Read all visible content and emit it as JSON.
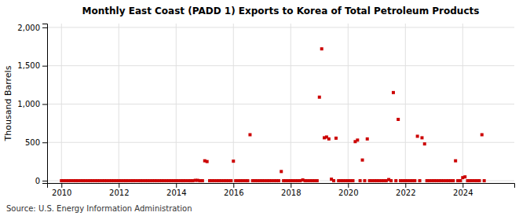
{
  "chart_data": {
    "type": "scatter",
    "title": "Monthly East Coast (PADD 1) Exports to Korea of Total Petroleum Products",
    "ylabel": "Thousand Barrels",
    "annotations": [
      "Source: U.S. Energy Information Administration"
    ],
    "color": "#cc0000",
    "marker": "square",
    "grid": true,
    "xlim": [
      2009.5,
      2025.8
    ],
    "ylim": [
      -30,
      2050
    ],
    "xticks": [
      2010,
      2012,
      2014,
      2016,
      2018,
      2020,
      2022,
      2024
    ],
    "yticks": [
      0,
      500,
      {
        "value": 1000,
        "label": "1,000"
      },
      {
        "value": 1500,
        "label": "1,500"
      },
      {
        "value": 2000,
        "label": "2,000"
      }
    ],
    "x": [
      2010.0,
      2010.08,
      2010.17,
      2010.25,
      2010.33,
      2010.42,
      2010.5,
      2010.58,
      2010.67,
      2010.75,
      2010.83,
      2010.92,
      2011.0,
      2011.08,
      2011.17,
      2011.25,
      2011.33,
      2011.42,
      2011.5,
      2011.58,
      2011.67,
      2011.75,
      2011.83,
      2011.92,
      2012.0,
      2012.08,
      2012.17,
      2012.25,
      2012.33,
      2012.42,
      2012.5,
      2012.58,
      2012.67,
      2012.75,
      2012.83,
      2012.92,
      2013.0,
      2013.08,
      2013.17,
      2013.25,
      2013.33,
      2013.42,
      2013.5,
      2013.58,
      2013.67,
      2013.75,
      2013.83,
      2013.92,
      2014.0,
      2014.08,
      2014.17,
      2014.25,
      2014.33,
      2014.42,
      2014.5,
      2014.58,
      2014.67,
      2014.75,
      2014.83,
      2014.92,
      2015.0,
      2015.08,
      2015.17,
      2015.25,
      2015.33,
      2015.42,
      2015.5,
      2015.58,
      2015.67,
      2015.75,
      2015.83,
      2015.92,
      2016.0,
      2016.08,
      2016.17,
      2016.25,
      2016.33,
      2016.42,
      2016.5,
      2016.58,
      2016.67,
      2016.75,
      2016.83,
      2016.92,
      2017.0,
      2017.08,
      2017.17,
      2017.25,
      2017.33,
      2017.42,
      2017.5,
      2017.58,
      2017.67,
      2017.75,
      2017.83,
      2017.92,
      2018.0,
      2018.08,
      2018.17,
      2018.25,
      2018.33,
      2018.42,
      2018.5,
      2018.58,
      2018.67,
      2018.75,
      2018.83,
      2018.92,
      2019.0,
      2019.08,
      2019.17,
      2019.25,
      2019.33,
      2019.42,
      2019.5,
      2019.58,
      2019.67,
      2019.75,
      2019.83,
      2019.92,
      2020.0,
      2020.08,
      2020.17,
      2020.25,
      2020.33,
      2020.42,
      2020.5,
      2020.58,
      2020.67,
      2020.75,
      2020.83,
      2020.92,
      2021.0,
      2021.08,
      2021.17,
      2021.25,
      2021.33,
      2021.42,
      2021.5,
      2021.58,
      2021.67,
      2021.75,
      2021.83,
      2021.92,
      2022.0,
      2022.08,
      2022.17,
      2022.25,
      2022.33,
      2022.42,
      2022.5,
      2022.58,
      2022.67,
      2022.75,
      2022.83,
      2022.92,
      2023.0,
      2023.08,
      2023.17,
      2023.25,
      2023.33,
      2023.42,
      2023.5,
      2023.58,
      2023.67,
      2023.75,
      2023.83,
      2023.92,
      2024.0,
      2024.08,
      2024.17,
      2024.25,
      2024.33,
      2024.42,
      2024.5,
      2024.58,
      2024.67,
      2024.75
    ],
    "values": [
      0,
      0,
      0,
      0,
      0,
      0,
      0,
      0,
      0,
      0,
      0,
      0,
      0,
      0,
      0,
      0,
      0,
      0,
      0,
      0,
      0,
      0,
      0,
      0,
      0,
      0,
      0,
      0,
      0,
      0,
      0,
      0,
      0,
      0,
      0,
      0,
      0,
      0,
      0,
      0,
      0,
      0,
      0,
      0,
      0,
      0,
      0,
      0,
      0,
      0,
      0,
      0,
      0,
      0,
      0,
      0,
      5,
      5,
      0,
      0,
      260,
      250,
      0,
      0,
      0,
      0,
      0,
      0,
      0,
      0,
      0,
      0,
      255,
      0,
      0,
      0,
      0,
      0,
      0,
      600,
      0,
      0,
      0,
      0,
      0,
      0,
      0,
      0,
      0,
      0,
      0,
      0,
      120,
      0,
      0,
      0,
      0,
      0,
      0,
      0,
      0,
      10,
      0,
      0,
      0,
      0,
      0,
      0,
      1090,
      1720,
      560,
      570,
      545,
      20,
      0,
      555,
      0,
      0,
      0,
      0,
      0,
      0,
      0,
      510,
      530,
      0,
      270,
      0,
      545,
      0,
      0,
      0,
      0,
      0,
      0,
      0,
      0,
      15,
      0,
      1150,
      0,
      800,
      0,
      0,
      0,
      0,
      0,
      0,
      0,
      580,
      0,
      560,
      480,
      0,
      0,
      0,
      0,
      0,
      0,
      0,
      0,
      0,
      0,
      0,
      0,
      260,
      0,
      0,
      40,
      50,
      0,
      0,
      0,
      0,
      0,
      0,
      600,
      0
    ]
  }
}
